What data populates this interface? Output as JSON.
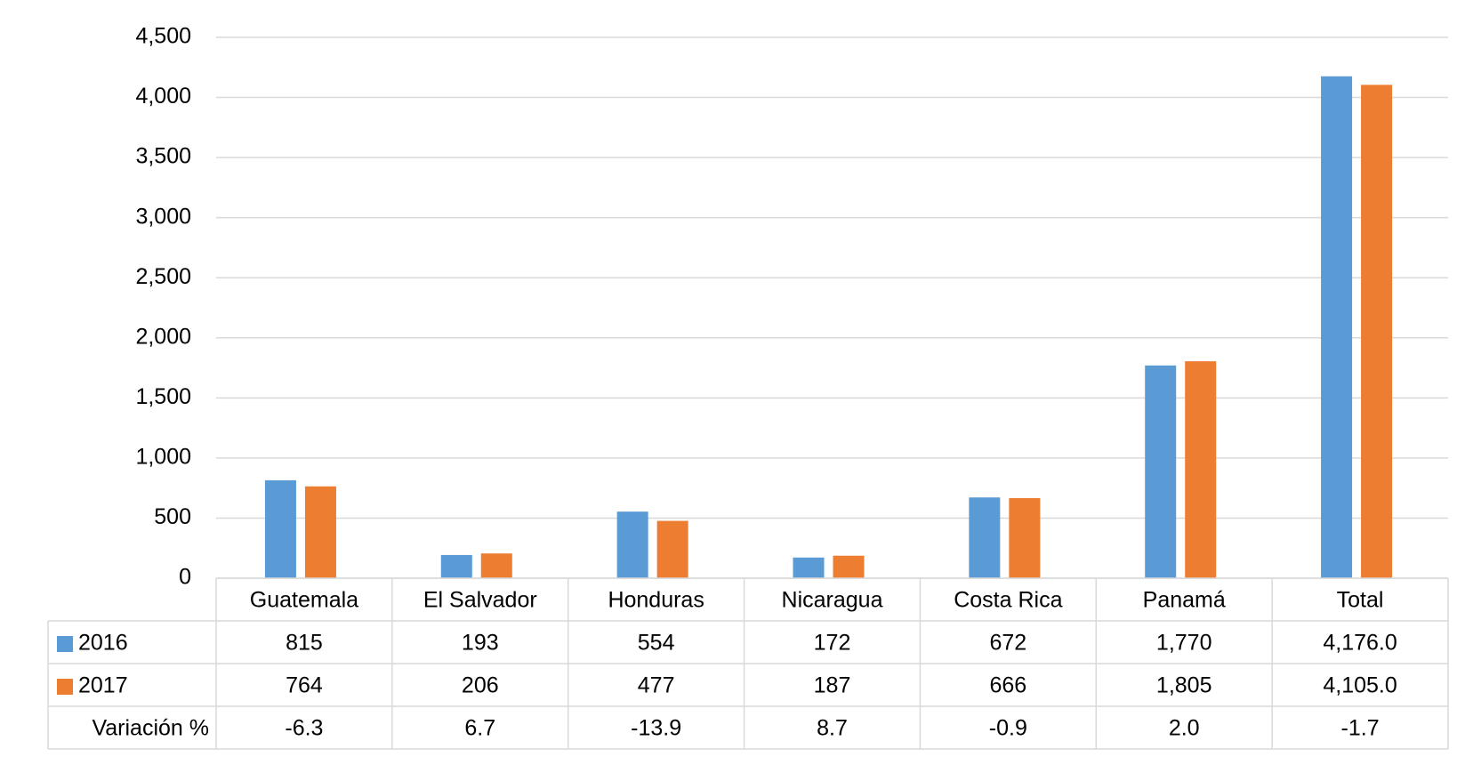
{
  "chart_data": {
    "type": "bar",
    "categories": [
      "Guatemala",
      "El Salvador",
      "Honduras",
      "Nicaragua",
      "Costa Rica",
      "Panamá",
      "Total"
    ],
    "series": [
      {
        "name": "2016",
        "color": "#5b9bd5",
        "values": [
          815,
          193,
          554,
          172,
          672,
          1770,
          4176.0
        ],
        "value_labels": [
          "815",
          "193",
          "554",
          "172",
          "672",
          "1,770",
          "4,176.0"
        ]
      },
      {
        "name": "2017",
        "color": "#ed7d31",
        "values": [
          764,
          206,
          477,
          187,
          666,
          1805,
          4105.0
        ],
        "value_labels": [
          "764",
          "206",
          "477",
          "187",
          "666",
          "1,805",
          "4,105.0"
        ]
      }
    ],
    "variation": {
      "name": "Variación %",
      "values": [
        -6.3,
        6.7,
        -13.9,
        8.7,
        -0.9,
        2.0,
        -1.7
      ],
      "value_labels": [
        "-6.3",
        "6.7",
        "-13.9",
        "8.7",
        "-0.9",
        "2.0",
        "-1.7"
      ]
    },
    "ylim": [
      0,
      4500
    ],
    "yticks": [
      0,
      500,
      {
        "value": 1000,
        "label": "1,000"
      },
      {
        "value": 1500,
        "label": "1,500"
      },
      {
        "value": 2000,
        "label": "2,000"
      },
      {
        "value": 2500,
        "label": "2,500"
      },
      {
        "value": 3000,
        "label": "3,000"
      },
      {
        "value": 3500,
        "label": "3,500"
      },
      {
        "value": 4000,
        "label": "4,000"
      },
      {
        "value": 4500,
        "label": "4,500"
      }
    ],
    "grid": true
  }
}
